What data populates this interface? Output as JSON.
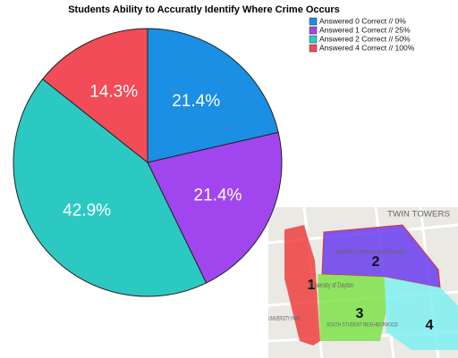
{
  "chart_data": {
    "type": "pie",
    "title": "Students Ability to Accuratly Identify Where Crime Occurs",
    "categories": [
      "Answered 0 Correct // 0%",
      "Answered 1 Correct // 25%",
      "Answered 2 Correct // 50%",
      "Answered 4 Correct // 100%"
    ],
    "values": [
      21.4,
      21.4,
      42.9,
      14.3
    ],
    "value_labels": [
      "21.4%",
      "21.4%",
      "42.9%",
      "14.3%"
    ],
    "colors": [
      "#1a8fe3",
      "#a146ef",
      "#2cc9c3",
      "#f24c58"
    ],
    "legend": "top-right"
  },
  "map": {
    "region_labels": [
      "1",
      "2",
      "3",
      "4"
    ],
    "place_labels": [
      "TWIN TOWERS",
      "University of Dayton",
      "Woodland Cemetery and Arboretum",
      "SOUTH STUDENT NEIGHBORHOOD",
      "UNIVERSITY PARK"
    ]
  }
}
